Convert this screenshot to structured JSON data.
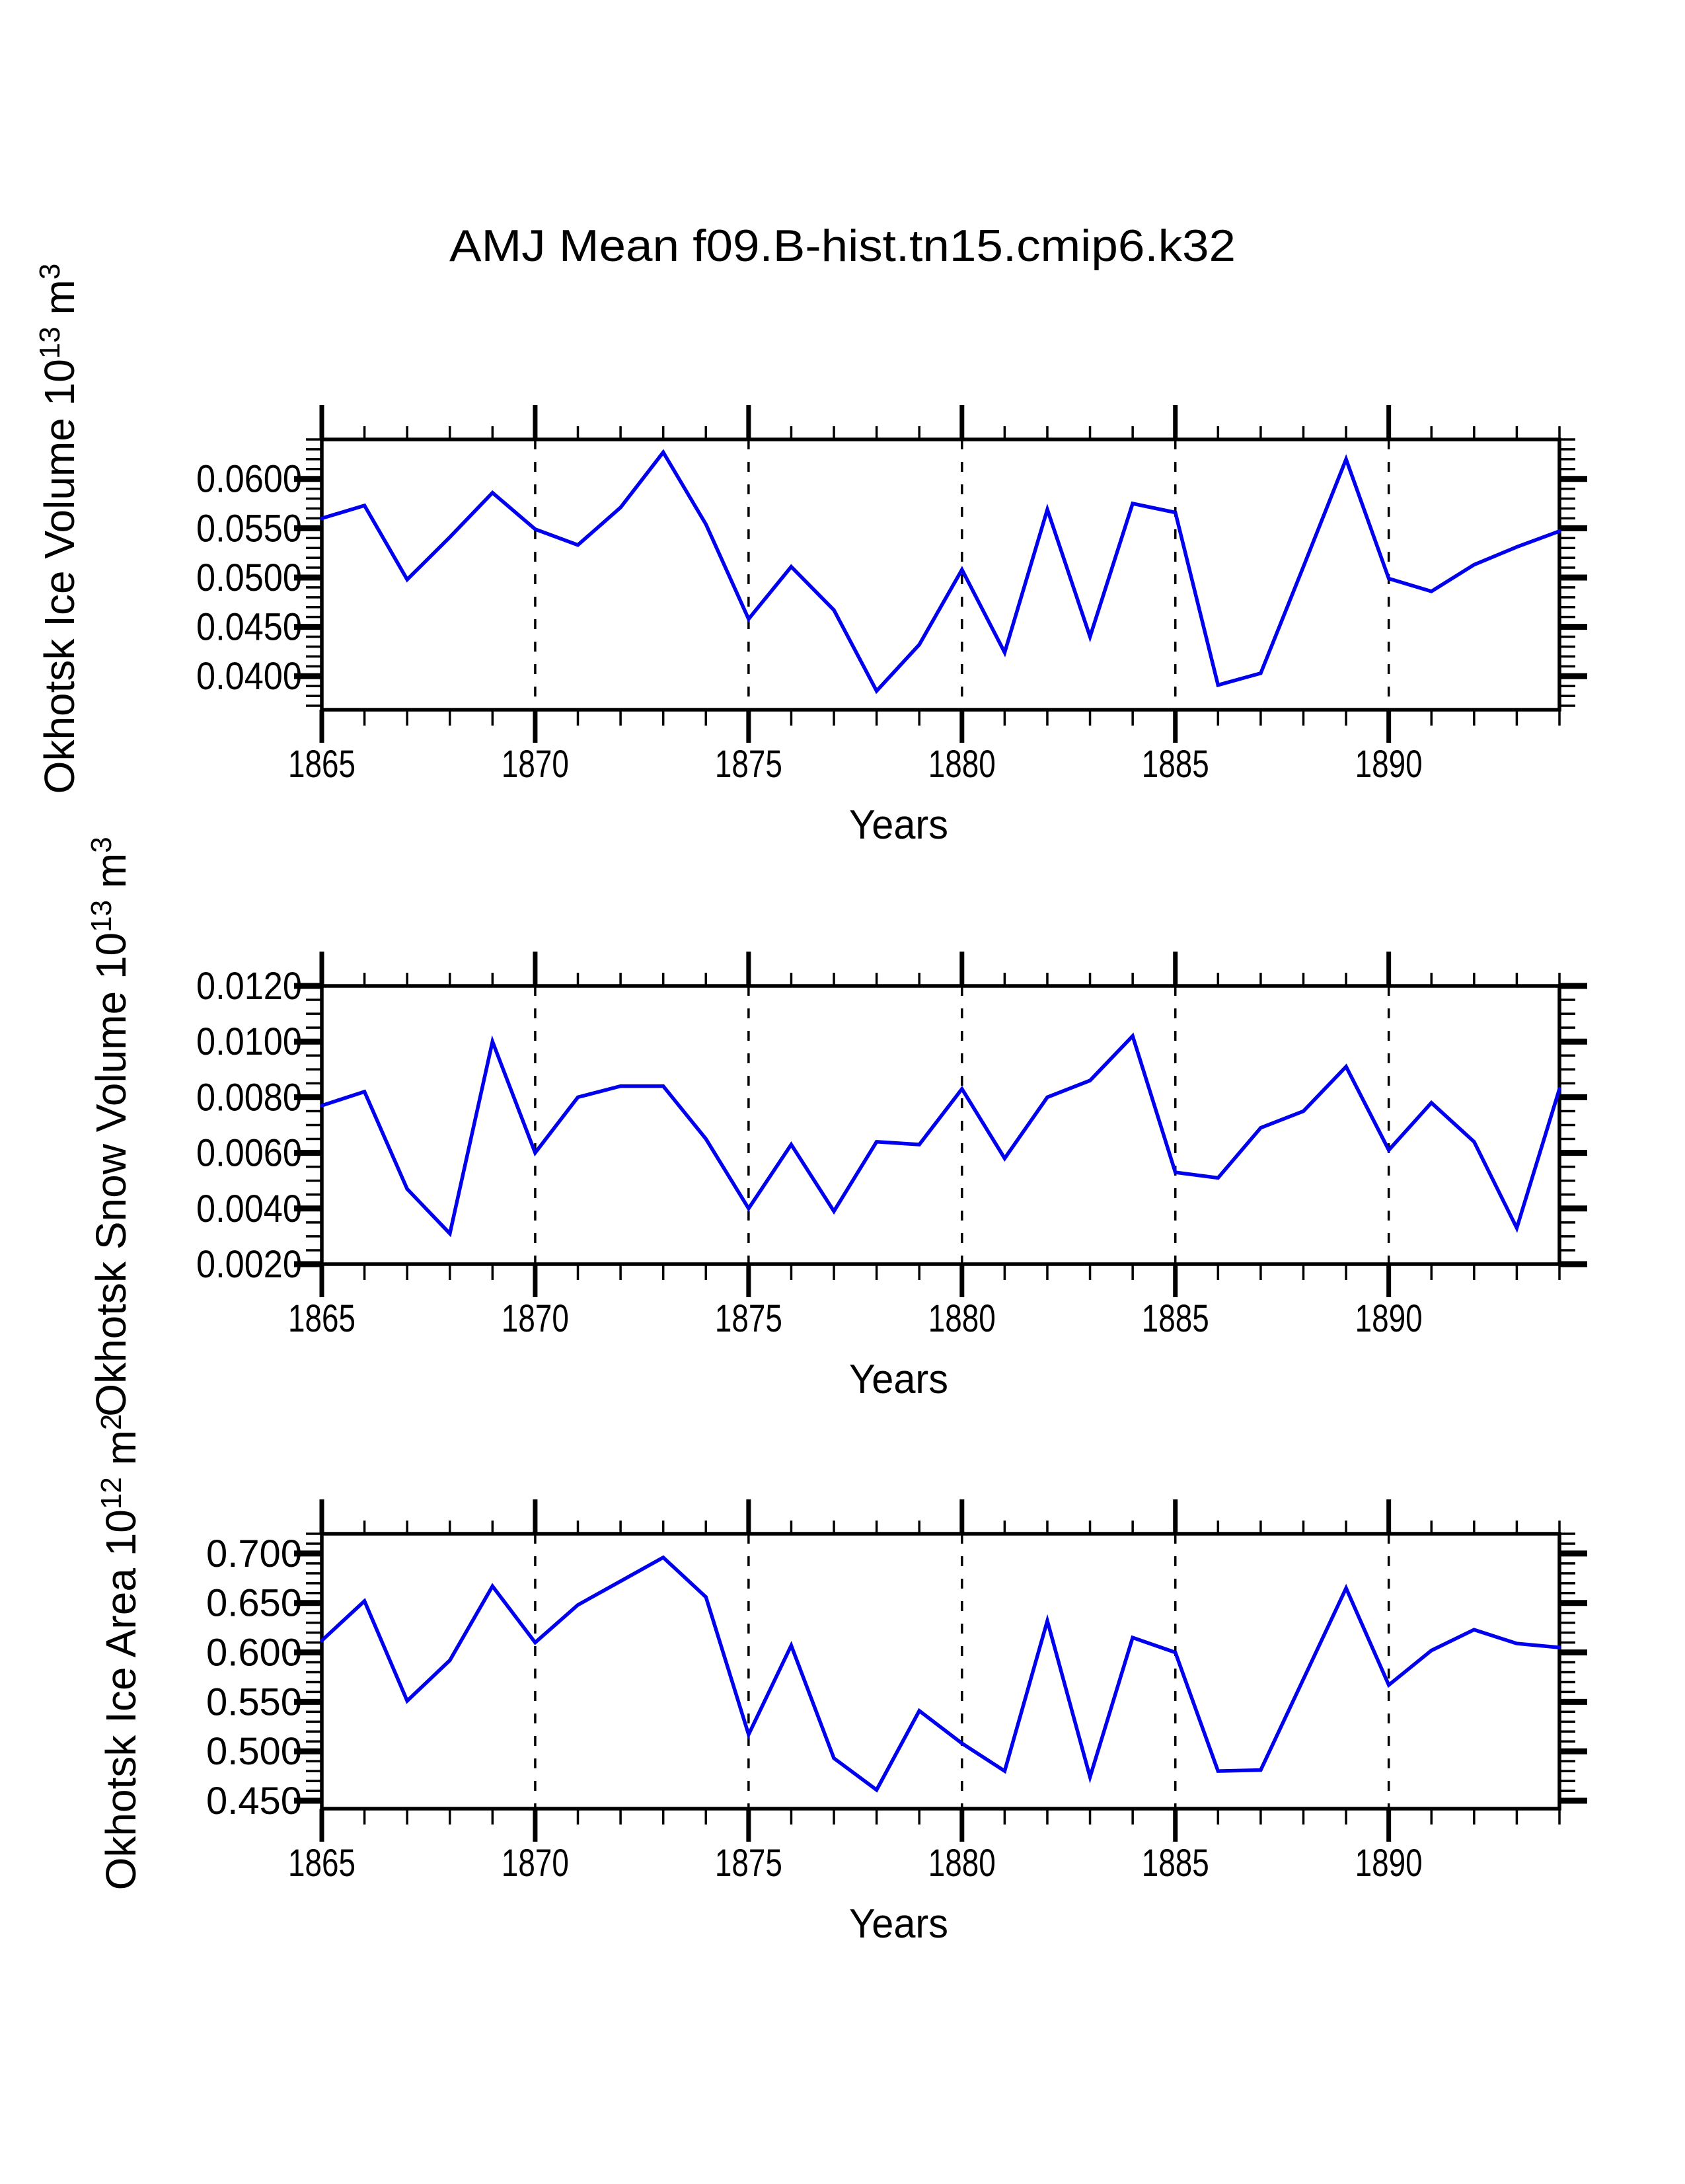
{
  "title": "AMJ Mean f09.B-hist.tn15.cmip6.k32",
  "line_color": "#0000EE",
  "axis_color": "#000000",
  "xlabel": "Years",
  "charts": [
    {
      "id": "ice-volume",
      "type": "line",
      "ylabel_segments": [
        {
          "t": "Okhotsk Ice Volume 10"
        },
        {
          "t": "13",
          "sup": 1
        },
        {
          "t": " m"
        },
        {
          "t": "3",
          "sup": 1
        }
      ],
      "xlabel": "Years",
      "xlim": [
        1865,
        1894
      ],
      "ylim": [
        0.0366,
        0.064
      ],
      "xticks": {
        "values": [
          1865,
          1870,
          1875,
          1880,
          1885,
          1890
        ],
        "labels": [
          "1865",
          "1870",
          "1875",
          "1880",
          "1885",
          "1890"
        ],
        "minor_step": 1,
        "grid_years": [
          1870,
          1875,
          1880,
          1885,
          1890
        ]
      },
      "yticks": {
        "values": [
          0.04,
          0.045,
          0.05,
          0.055,
          0.06
        ],
        "labels": [
          "0.0400",
          "0.0450",
          "0.0500",
          "0.0550",
          "0.0600"
        ],
        "minor_step": 0.001
      },
      "x": [
        1865,
        1866,
        1867,
        1868,
        1869,
        1870,
        1871,
        1872,
        1873,
        1874,
        1875,
        1876,
        1877,
        1878,
        1879,
        1880,
        1881,
        1882,
        1883,
        1884,
        1885,
        1886,
        1887,
        1888,
        1889,
        1890,
        1891,
        1892,
        1893,
        1894
      ],
      "values": [
        0.056,
        0.0573,
        0.0498,
        0.0541,
        0.0586,
        0.0549,
        0.0533,
        0.0571,
        0.0627,
        0.0554,
        0.0458,
        0.0511,
        0.0467,
        0.0385,
        0.0432,
        0.0508,
        0.0424,
        0.0569,
        0.044,
        0.0575,
        0.0566,
        0.0391,
        0.0403,
        0.0511,
        0.062,
        0.0499,
        0.0486,
        0.0513,
        0.0531,
        0.0547
      ]
    },
    {
      "id": "snow-volume",
      "type": "line",
      "ylabel_segments": [
        {
          "t": "Okhotsk Snow Volume 10"
        },
        {
          "t": "13",
          "sup": 1
        },
        {
          "t": " m"
        },
        {
          "t": "3",
          "sup": 1
        }
      ],
      "xlabel": "Years",
      "xlim": [
        1865,
        1894
      ],
      "ylim": [
        0.002,
        0.012
      ],
      "xticks": {
        "values": [
          1865,
          1870,
          1875,
          1880,
          1885,
          1890
        ],
        "labels": [
          "1865",
          "1870",
          "1875",
          "1880",
          "1885",
          "1890"
        ],
        "minor_step": 1,
        "grid_years": [
          1870,
          1875,
          1880,
          1885,
          1890
        ]
      },
      "yticks": {
        "values": [
          0.002,
          0.004,
          0.006,
          0.008,
          0.01,
          0.012
        ],
        "labels": [
          "0.0020",
          "0.0040",
          "0.0060",
          "0.0080",
          "0.0100",
          "0.0120"
        ],
        "minor_step": 0.0005
      },
      "x": [
        1865,
        1866,
        1867,
        1868,
        1869,
        1870,
        1871,
        1872,
        1873,
        1874,
        1875,
        1876,
        1877,
        1878,
        1879,
        1880,
        1881,
        1882,
        1883,
        1884,
        1885,
        1886,
        1887,
        1888,
        1889,
        1890,
        1891,
        1892,
        1893,
        1894
      ],
      "values": [
        0.0077,
        0.0082,
        0.0047,
        0.0031,
        0.01,
        0.006,
        0.008,
        0.0084,
        0.0084,
        0.0065,
        0.004,
        0.0063,
        0.0039,
        0.0064,
        0.0063,
        0.0083,
        0.0058,
        0.008,
        0.0086,
        0.0102,
        0.0053,
        0.0051,
        0.0069,
        0.0075,
        0.0091,
        0.0061,
        0.0078,
        0.0064,
        0.0033,
        0.0083
      ]
    },
    {
      "id": "ice-area",
      "type": "line",
      "ylabel_segments": [
        {
          "t": "Okhotsk Ice Area 10"
        },
        {
          "t": "12",
          "sup": 1
        },
        {
          "t": " m"
        },
        {
          "t": "2",
          "sup": 1
        }
      ],
      "xlabel": "Years",
      "xlim": [
        1865,
        1894
      ],
      "ylim": [
        0.442,
        0.72
      ],
      "xticks": {
        "values": [
          1865,
          1870,
          1875,
          1880,
          1885,
          1890
        ],
        "labels": [
          "1865",
          "1870",
          "1875",
          "1880",
          "1885",
          "1890"
        ],
        "minor_step": 1,
        "grid_years": [
          1870,
          1875,
          1880,
          1885,
          1890
        ]
      },
      "yticks": {
        "values": [
          0.45,
          0.5,
          0.55,
          0.6,
          0.65,
          0.7
        ],
        "labels": [
          "0.450",
          "0.500",
          "0.550",
          "0.600",
          "0.650",
          "0.700"
        ],
        "minor_step": 0.01
      },
      "x": [
        1865,
        1866,
        1867,
        1868,
        1869,
        1870,
        1871,
        1872,
        1873,
        1874,
        1875,
        1876,
        1877,
        1878,
        1879,
        1880,
        1881,
        1882,
        1883,
        1884,
        1885,
        1886,
        1887,
        1888,
        1889,
        1890,
        1891,
        1892,
        1893,
        1894
      ],
      "values": [
        0.612,
        0.652,
        0.551,
        0.592,
        0.667,
        0.61,
        0.648,
        0.672,
        0.696,
        0.656,
        0.517,
        0.607,
        0.493,
        0.461,
        0.541,
        0.508,
        0.48,
        0.632,
        0.474,
        0.615,
        0.6,
        0.48,
        0.481,
        0.573,
        0.665,
        0.567,
        0.602,
        0.623,
        0.609,
        0.605
      ]
    }
  ]
}
